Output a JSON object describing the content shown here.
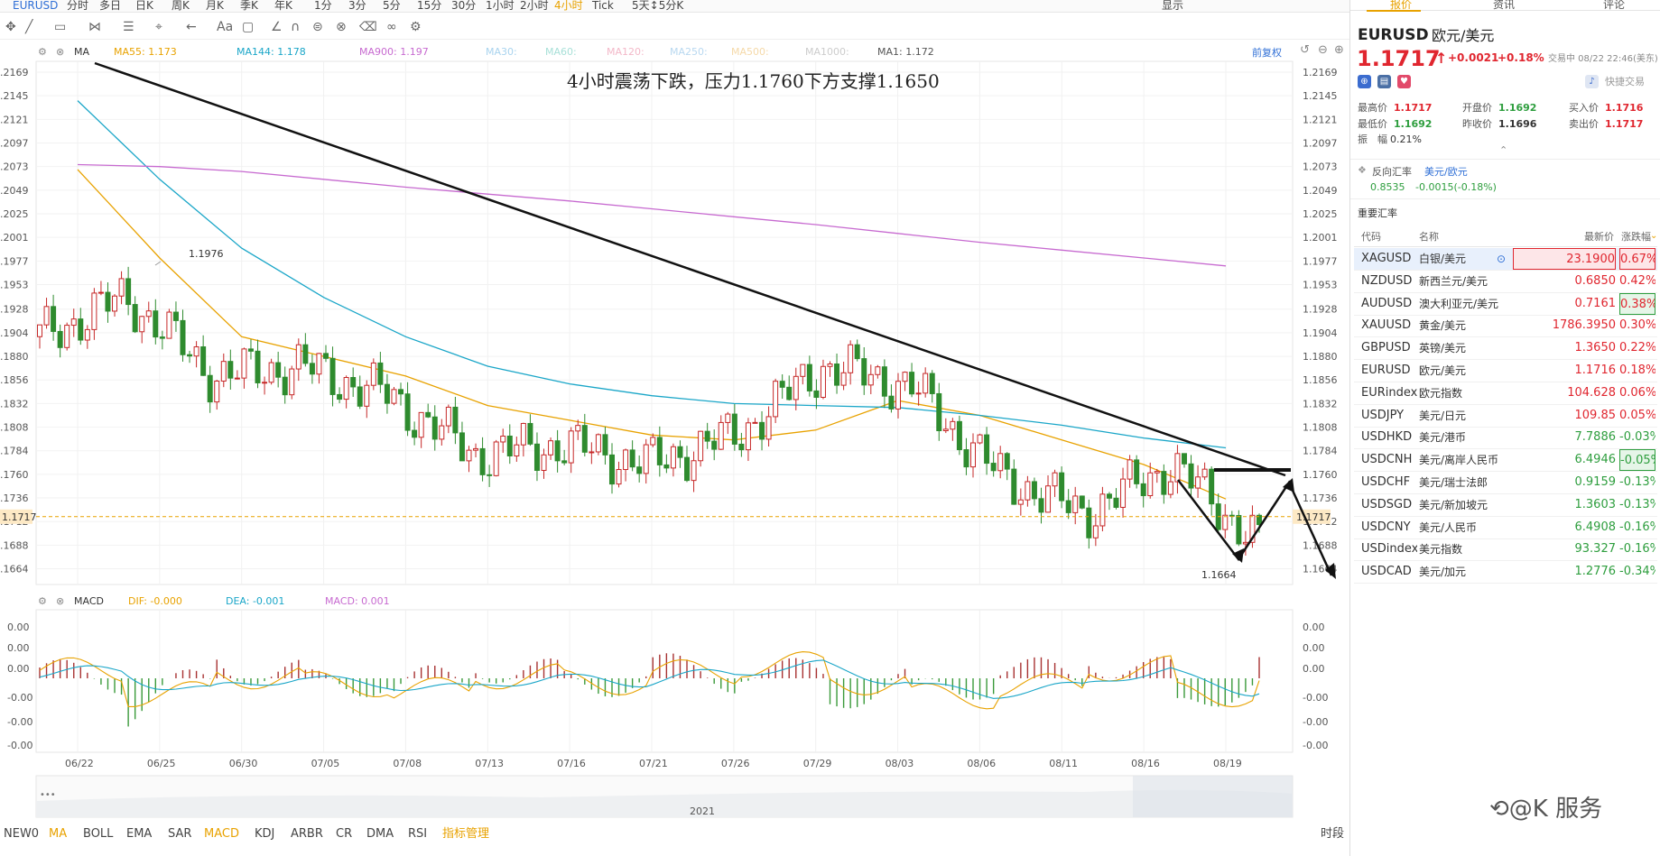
{
  "topbar": {
    "items": [
      "EURUSD",
      "分时",
      "多日",
      "日K",
      "周K",
      "月K",
      "季K",
      "年K",
      "1分",
      "3分",
      "5分",
      "15分",
      "30分",
      "1小时",
      "2小时",
      "4小时",
      "Tick",
      "5天↕5分K"
    ],
    "active_index": 15,
    "display_label": "显示"
  },
  "legend_ma": {
    "title": "MA",
    "items": [
      {
        "label": "MA55: 1.173",
        "color": "#e8a200"
      },
      {
        "label": "MA144: 1.178",
        "color": "#1aa6c8"
      },
      {
        "label": "MA900: 1.197",
        "color": "#c76ad0"
      },
      {
        "label": "MA30:",
        "color": "#a8d3ee"
      },
      {
        "label": "MA60:",
        "color": "#a8e0d8"
      },
      {
        "label": "MA120:",
        "color": "#f3b8c8"
      },
      {
        "label": "MA250:",
        "color": "#b8d8f0"
      },
      {
        "label": "MA500:",
        "color": "#f5d9a8"
      },
      {
        "label": "MA1000:",
        "color": "#cccccc"
      },
      {
        "label": "MA1: 1.172",
        "color": "#555555"
      }
    ],
    "restore_label": "前复权"
  },
  "legend_macd": {
    "title": "MACD",
    "items": [
      {
        "label": "DIF: -0.000",
        "color": "#e8a200"
      },
      {
        "label": "DEA: -0.001",
        "color": "#1aa6c8"
      },
      {
        "label": "MACD: 0.001",
        "color": "#c76ad0"
      }
    ]
  },
  "annotation": "4小时震荡下跌，压力1.1760下方支撑1.1650",
  "labels": {
    "high": "1.1976",
    "low": "1.1664",
    "current_price": "1.1717",
    "year": "2021"
  },
  "price_axis": [
    "1.2169",
    "1.2145",
    "1.2121",
    "1.2097",
    "1.2073",
    "1.2049",
    "1.2025",
    "1.2001",
    "1.1977",
    "1.1953",
    "1.1928",
    "1.1904",
    "1.1880",
    "1.1856",
    "1.1832",
    "1.1808",
    "1.1784",
    "1.1760",
    "1.1736",
    "1.1712",
    "1.1688",
    "1.1664"
  ],
  "macd_axis": [
    "0.00",
    "0.00",
    "0.00",
    "-0.00",
    "-0.00",
    "-0.00"
  ],
  "date_axis": [
    "06/22",
    "06/25",
    "06/30",
    "07/05",
    "07/08",
    "07/13",
    "07/16",
    "07/21",
    "07/26",
    "07/29",
    "08/03",
    "08/06",
    "08/11",
    "08/16",
    "08/19"
  ],
  "bottom_tabs": [
    "NEW0",
    "MA",
    "BOLL",
    "EMA",
    "SAR",
    "MACD",
    "KDJ",
    "ARBR",
    "CR",
    "DMA",
    "RSI",
    "指标管理"
  ],
  "bottom_right": "时段",
  "chart_data": {
    "type": "line",
    "title": "4小时震荡下跌，压力1.1760下方支撑1.1650",
    "x": [
      "06/22",
      "06/25",
      "06/30",
      "07/05",
      "07/08",
      "07/13",
      "07/16",
      "07/21",
      "07/26",
      "07/29",
      "08/03",
      "08/06",
      "08/11",
      "08/16",
      "08/19"
    ],
    "ylim": [
      1.1648,
      1.218
    ],
    "series": [
      {
        "name": "MA1",
        "values": [
          1.19,
          1.194,
          1.186,
          1.187,
          1.184,
          1.178,
          1.179,
          1.177,
          1.18,
          1.187,
          1.185,
          1.176,
          1.172,
          1.177,
          1.169
        ]
      },
      {
        "name": "MA55",
        "values": [
          1.207,
          1.198,
          1.19,
          1.188,
          1.186,
          1.183,
          1.1815,
          1.18,
          1.1795,
          1.1805,
          1.1835,
          1.182,
          1.1795,
          1.177,
          1.1735
        ]
      },
      {
        "name": "MA144",
        "values": [
          1.214,
          1.206,
          1.199,
          1.194,
          1.19,
          1.187,
          1.1852,
          1.184,
          1.1832,
          1.183,
          1.1828,
          1.182,
          1.181,
          1.1797,
          1.1787
        ]
      },
      {
        "name": "MA900",
        "values": [
          1.2075,
          1.2073,
          1.2068,
          1.206,
          1.2052,
          1.2045,
          1.2038,
          1.203,
          1.2022,
          1.2014,
          1.2005,
          1.1996,
          1.1988,
          1.198,
          1.1972
        ]
      }
    ]
  },
  "right_panel": {
    "tabs": [
      "报价",
      "资讯",
      "评论"
    ],
    "symbol": "EURUSD",
    "symbol_name": "欧元/美元",
    "price": "1.1717",
    "arrow": "↑",
    "change": "+0.0021",
    "change_pct": "+0.18%",
    "trade_time": "交易中 08/22 22:46(美东)",
    "quick_trade": "快捷交易",
    "stats": [
      {
        "label": "最高价",
        "value": "1.1717",
        "cls": "up"
      },
      {
        "label": "开盘价",
        "value": "1.1692",
        "cls": "down"
      },
      {
        "label": "买入价",
        "value": "1.1716",
        "cls": "up"
      },
      {
        "label": "最低价",
        "value": "1.1692",
        "cls": "down"
      },
      {
        "label": "昨收价",
        "value": "1.1696",
        "cls": "plain"
      },
      {
        "label": "卖出价",
        "value": "1.1717",
        "cls": "up"
      }
    ],
    "amplitude_label": "振　幅",
    "amplitude_value": "0.21%",
    "reverse_label": "反向汇率",
    "reverse_pair": "美元/欧元",
    "reverse_value": "0.8535",
    "reverse_change": "-0.0015(-0.18%)",
    "important_label": "重要汇率",
    "table_headers": [
      "代码",
      "名称",
      "最新价",
      "涨跌幅"
    ],
    "rows": [
      {
        "code": "XAGUSD",
        "name": "白银/美元",
        "price": "23.1900",
        "pct": "0.67%",
        "dir": "up",
        "boxed": "red",
        "selected": true
      },
      {
        "code": "NZDUSD",
        "name": "新西兰元/美元",
        "price": "0.6850",
        "pct": "0.42%",
        "dir": "up"
      },
      {
        "code": "AUDUSD",
        "name": "澳大利亚元/美元",
        "price": "0.7161",
        "pct": "0.38%",
        "dir": "up",
        "boxed": "green-pct"
      },
      {
        "code": "XAUUSD",
        "name": "黄金/美元",
        "price": "1786.3950",
        "pct": "0.30%",
        "dir": "up"
      },
      {
        "code": "GBPUSD",
        "name": "英镑/美元",
        "price": "1.3650",
        "pct": "0.22%",
        "dir": "up"
      },
      {
        "code": "EURUSD",
        "name": "欧元/美元",
        "price": "1.1716",
        "pct": "0.18%",
        "dir": "up"
      },
      {
        "code": "EURindex",
        "name": "欧元指数",
        "price": "104.628",
        "pct": "0.06%",
        "dir": "up"
      },
      {
        "code": "USDJPY",
        "name": "美元/日元",
        "price": "109.85",
        "pct": "0.05%",
        "dir": "up"
      },
      {
        "code": "USDHKD",
        "name": "美元/港币",
        "price": "7.7886",
        "pct": "-0.03%",
        "dir": "down"
      },
      {
        "code": "USDCNH",
        "name": "美元/离岸人民币",
        "price": "6.4946",
        "pct": "-0.05%",
        "dir": "down",
        "boxed": "green-pct"
      },
      {
        "code": "USDCHF",
        "name": "美元/瑞士法郎",
        "price": "0.9159",
        "pct": "-0.13%",
        "dir": "down"
      },
      {
        "code": "USDSGD",
        "name": "美元/新加坡元",
        "price": "1.3603",
        "pct": "-0.13%",
        "dir": "down"
      },
      {
        "code": "USDCNY",
        "name": "美元/人民币",
        "price": "6.4908",
        "pct": "-0.16%",
        "dir": "down"
      },
      {
        "code": "USDindex",
        "name": "美元指数",
        "price": "93.327",
        "pct": "-0.16%",
        "dir": "down"
      },
      {
        "code": "USDCAD",
        "name": "美元/加元",
        "price": "1.2776",
        "pct": "-0.34%",
        "dir": "down"
      }
    ]
  },
  "watermark": "@K 服务"
}
